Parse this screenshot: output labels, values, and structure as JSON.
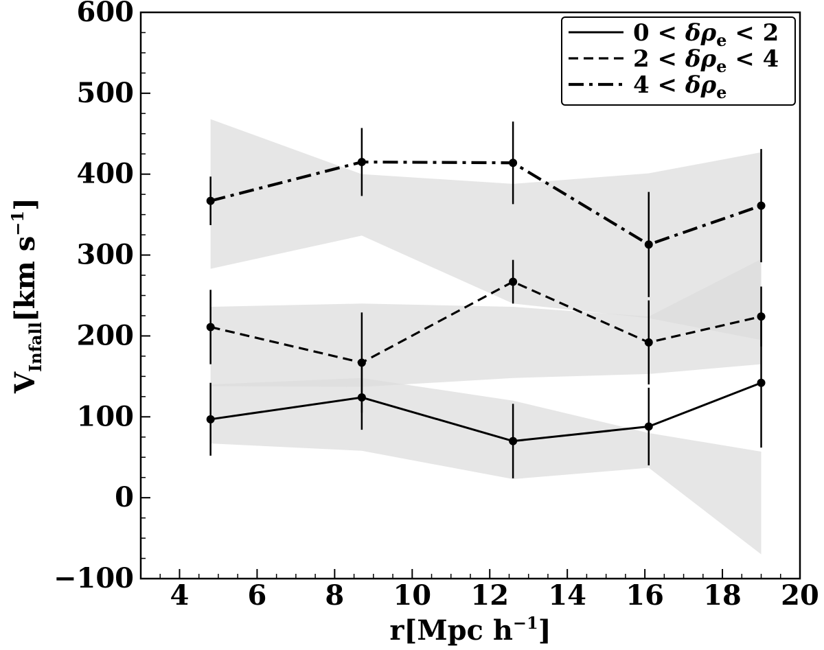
{
  "chart_data": {
    "type": "line",
    "xlabel": {
      "main": "r[Mpc h",
      "sup": "−1",
      "tail": "]"
    },
    "ylabel": {
      "main": "V",
      "sub": "Infall",
      "tail1": "[km s",
      "sup": "−1",
      "tail2": "]"
    },
    "xlim": [
      3,
      20
    ],
    "ylim": [
      -100,
      600
    ],
    "xticks": [
      4,
      6,
      8,
      10,
      12,
      14,
      16,
      18,
      20
    ],
    "xtick_labels": [
      "4",
      "6",
      "8",
      "10",
      "12",
      "14",
      "16",
      "18",
      "20"
    ],
    "yticks": [
      -100,
      0,
      100,
      200,
      300,
      400,
      500,
      600
    ],
    "ytick_labels": [
      "−100",
      "0",
      "100",
      "200",
      "300",
      "400",
      "500",
      "600"
    ],
    "legend_position": "top-right",
    "series": [
      {
        "name": "0 < δρe < 2",
        "legend": {
          "a": "0",
          "op1": "<",
          "sym": "δρ",
          "sub": "e",
          "op2": "<",
          "b": "2"
        },
        "style": "solid",
        "x": [
          4.8,
          8.7,
          12.6,
          16.1,
          19.0
        ],
        "y": [
          97,
          124,
          70,
          88,
          142
        ],
        "yerr": [
          45,
          40,
          46,
          48,
          80
        ],
        "band_low": [
          67,
          58,
          23,
          37,
          -70
        ],
        "band_high": [
          140,
          148,
          120,
          80,
          57
        ]
      },
      {
        "name": "2 < δρe < 4",
        "legend": {
          "a": "2",
          "op1": "<",
          "sym": "δρ",
          "sub": "e",
          "op2": "<",
          "b": "4"
        },
        "style": "dashed",
        "x": [
          4.8,
          8.7,
          12.6,
          16.1,
          19.0
        ],
        "y": [
          211,
          167,
          267,
          192,
          224
        ],
        "yerr": [
          46,
          62,
          27,
          52,
          37
        ],
        "band_low": [
          138,
          137,
          148,
          153,
          165
        ],
        "band_high": [
          236,
          240,
          236,
          224,
          295
        ]
      },
      {
        "name": "4 < δρe",
        "legend": {
          "a": "4",
          "op1": "<",
          "sym": "δρ",
          "sub": "e",
          "op2": "",
          "b": ""
        },
        "style": "dashdot",
        "x": [
          4.8,
          8.7,
          12.6,
          16.1,
          19.0
        ],
        "y": [
          367,
          415,
          414,
          313,
          361
        ],
        "yerr": [
          30,
          42,
          51,
          65,
          70
        ],
        "band_low": [
          283,
          324,
          240,
          222,
          195
        ],
        "band_high": [
          468,
          400,
          388,
          401,
          427
        ]
      }
    ]
  }
}
